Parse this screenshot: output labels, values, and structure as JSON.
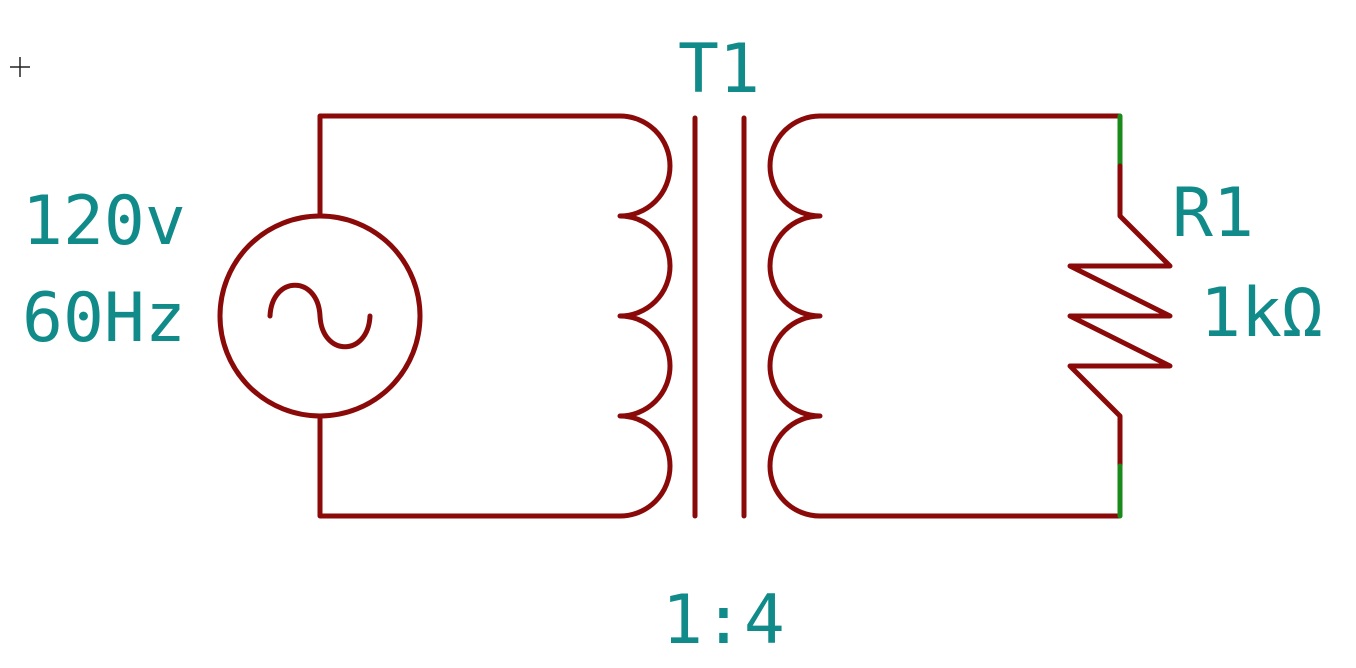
{
  "colors": {
    "wire": "#8a0a0a",
    "pin": "#1a8a1a",
    "text": "#118a8a",
    "background": "#ffffff",
    "cursor": "#222222"
  },
  "source": {
    "voltage": "120v",
    "frequency": "60Hz"
  },
  "transformer": {
    "ref": "T1",
    "ratio": "1:4"
  },
  "resistor": {
    "ref": "R1",
    "value": "1kΩ"
  }
}
